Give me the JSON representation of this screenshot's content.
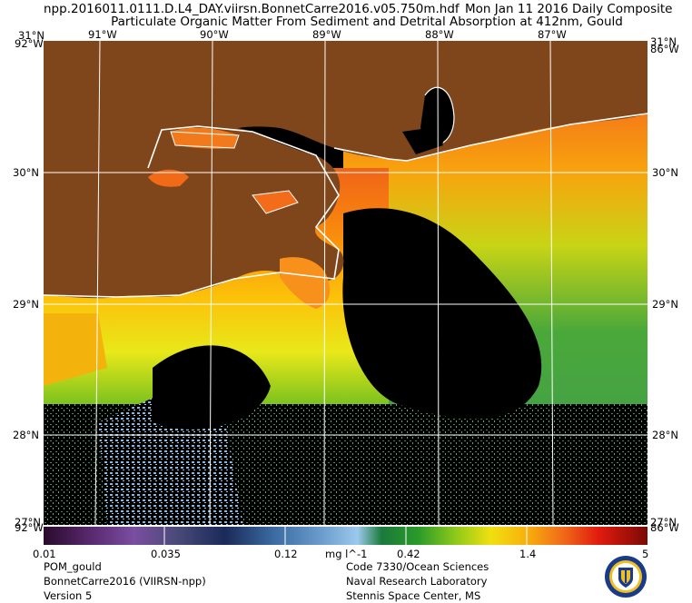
{
  "header": {
    "filename": "npp.2016011.0111.D.L4_DAY.viirsn.BonnetCarre2016.v05.750m.hdf",
    "date": "Mon Jan 11 2016 Daily Composite",
    "title": "Particulate Organic Matter From Sediment and Detrital Absorption at 412nm, Gould"
  },
  "map": {
    "lon_ticks": [
      "91°W",
      "90°W",
      "89°W",
      "88°W",
      "87°W"
    ],
    "lat_ticks": [
      "30°N",
      "29°N",
      "28°N"
    ],
    "corner_labels": {
      "top_left": "31°N",
      "top_left_lon": "92°W",
      "top_right": "31°N",
      "top_right_lon": "86°W",
      "bottom_left": "27°N",
      "bottom_left_lon": "92°W",
      "bottom_right": "27°N",
      "bottom_right_lon": "86°W"
    },
    "colors": {
      "land": "#80461b",
      "no_data": "#000000",
      "coastline": "#ffffff",
      "grid": "#ffffff"
    }
  },
  "colorbar": {
    "labels": [
      "0.01",
      "0.035",
      "0.12",
      "0.42",
      "1.4",
      "5"
    ],
    "unit": "mg l^-1",
    "scale": "log",
    "range": [
      0.01,
      5
    ]
  },
  "footer": {
    "left": [
      "POM_gould",
      "BonnetCarre2016 (VIIRSN-npp)",
      "Version 5"
    ],
    "right": [
      "Code 7330/Ocean Sciences",
      "Naval Research Laboratory",
      "Stennis Space Center, MS"
    ],
    "logo": "nrl-seal-icon"
  }
}
